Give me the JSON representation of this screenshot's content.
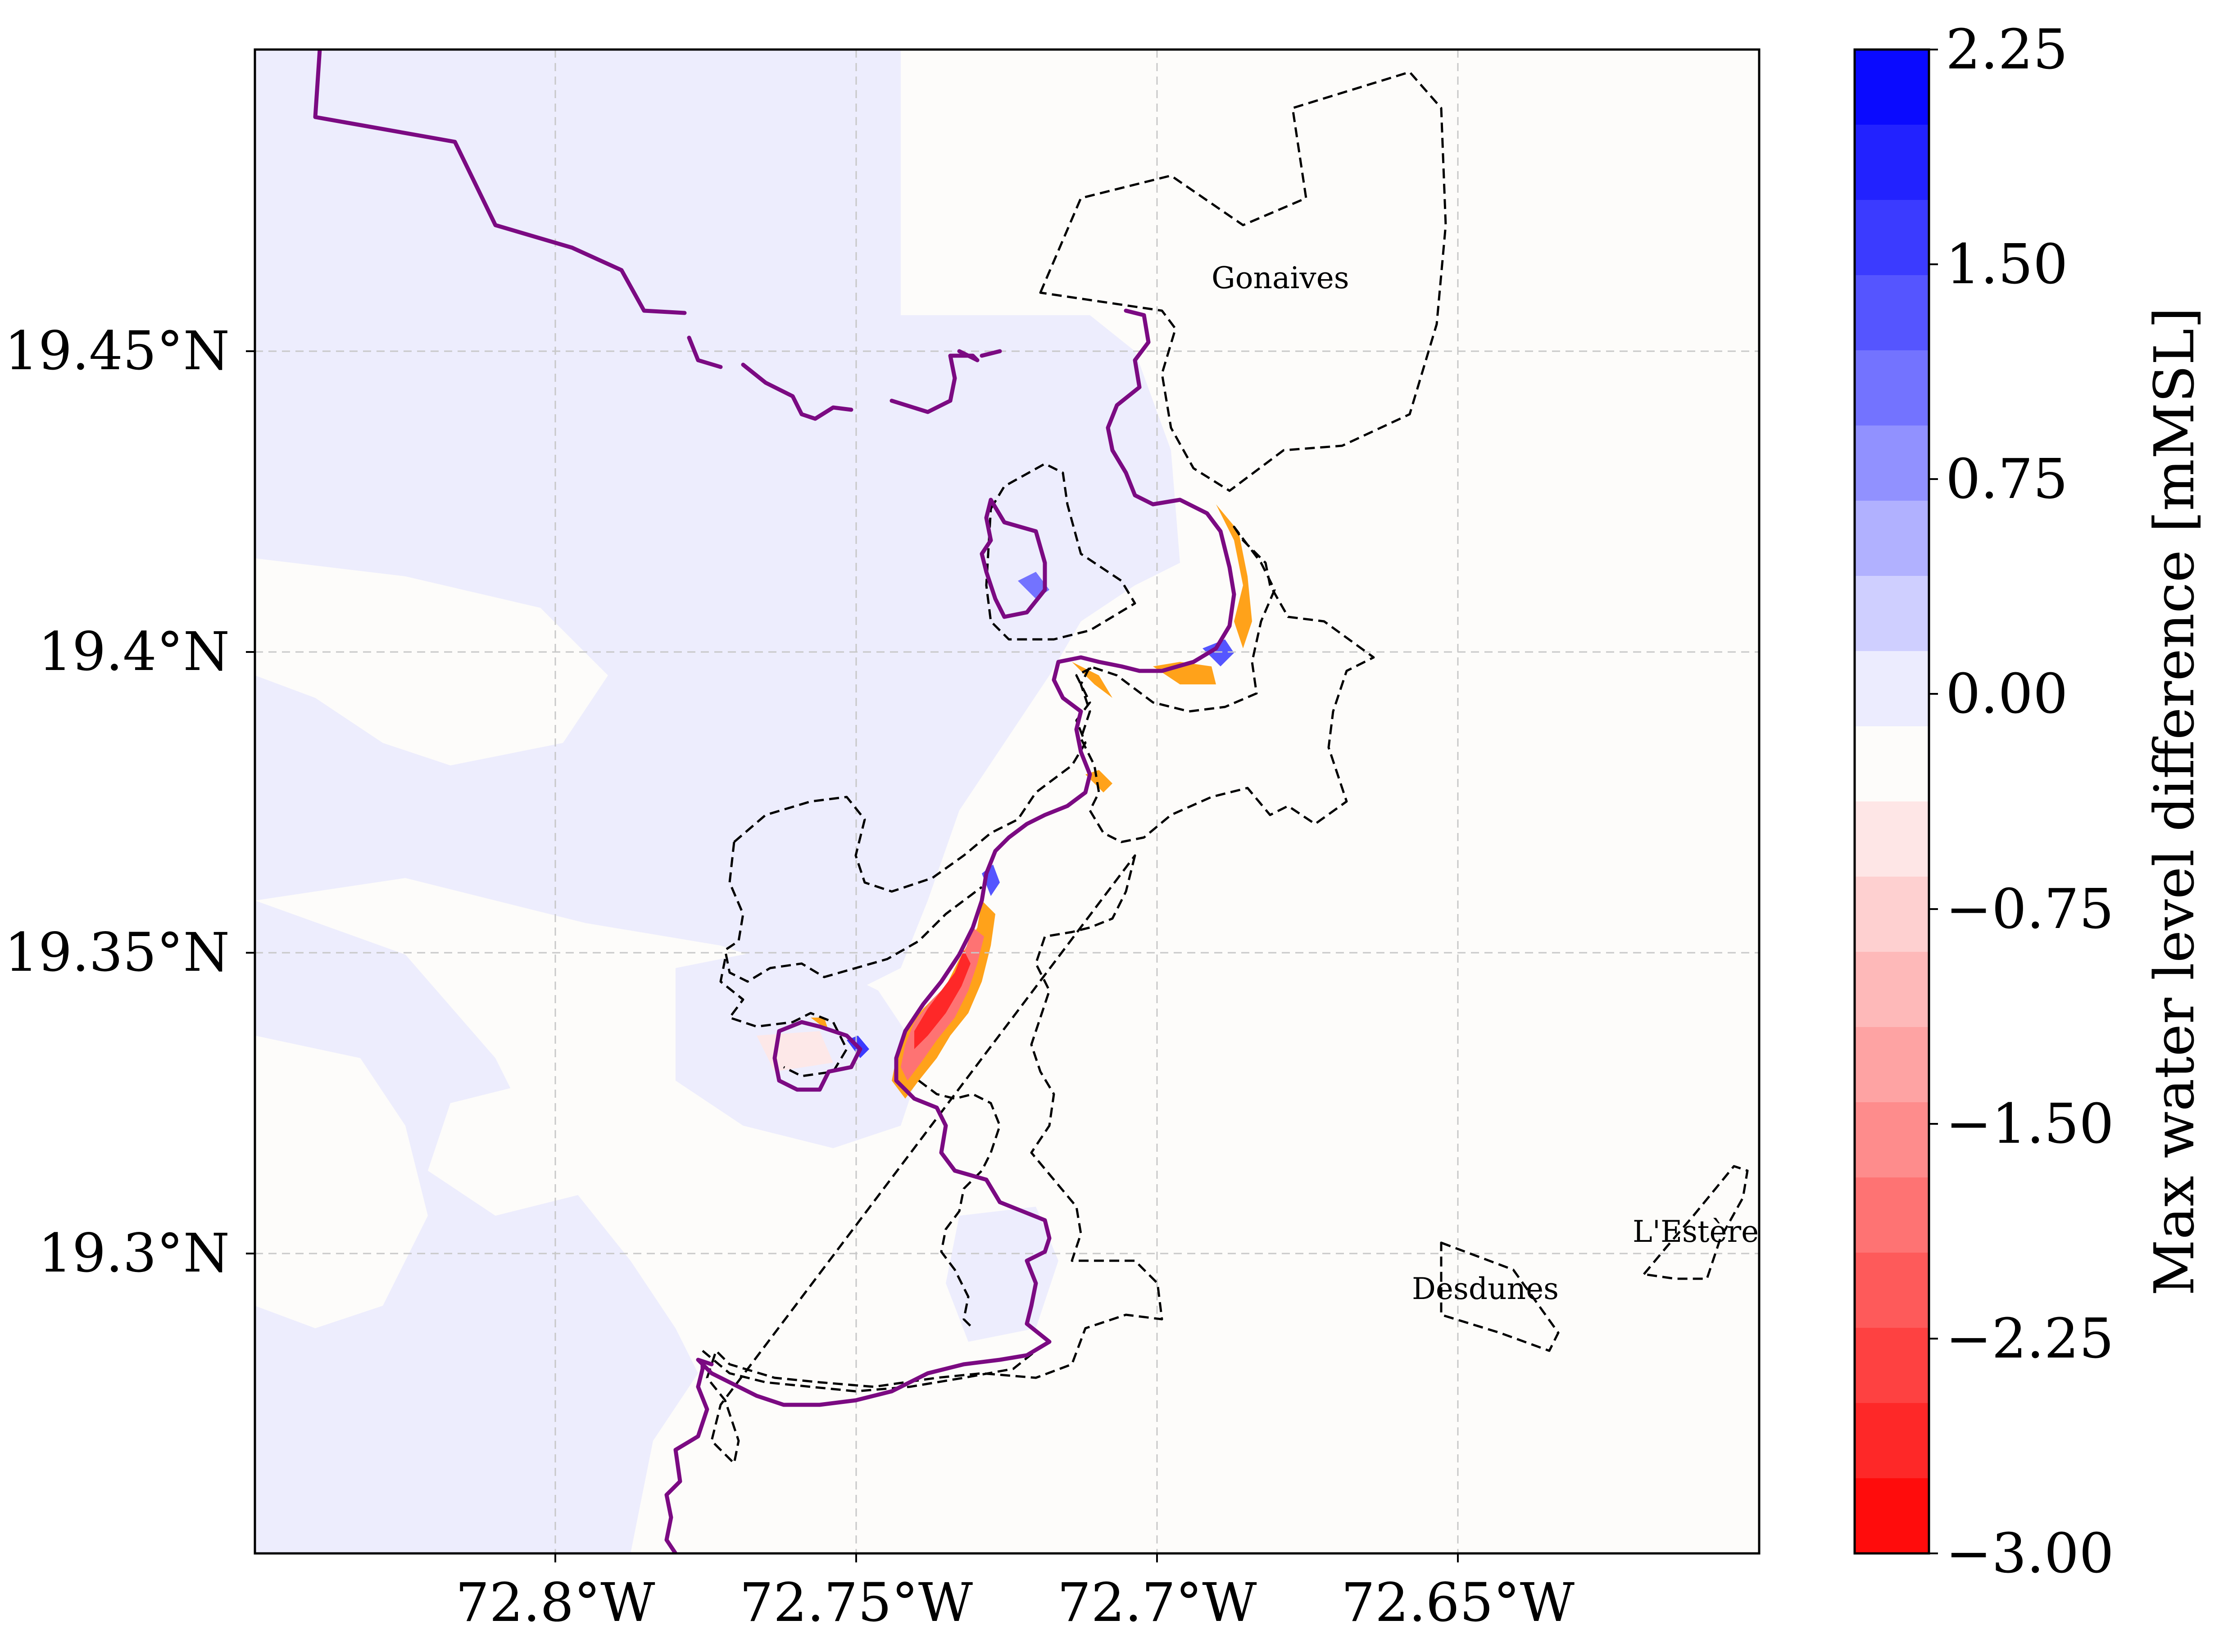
{
  "map": {
    "x_ticks": [
      "72.8°W",
      "72.75°W",
      "72.7°W",
      "72.65°W"
    ],
    "y_ticks": [
      "19.45°N",
      "19.4°N",
      "19.35°N",
      "19.3°N"
    ],
    "places": [
      "Gonaives",
      "Desdunes",
      "L'Estère"
    ]
  },
  "colorbar": {
    "label": "Max water level difference [mMSL]",
    "ticks": [
      "2.25",
      "1.50",
      "0.75",
      "0.00",
      "−0.75",
      "−1.50",
      "−2.25",
      "−3.00"
    ],
    "range": [
      -3.0,
      2.25
    ],
    "bands": [
      "#0a0aff",
      "#2222ff",
      "#3b3bff",
      "#5555ff",
      "#7373ff",
      "#9191ff",
      "#b1b1ff",
      "#cfcfff",
      "#ececfe",
      "#fdfcfa",
      "#fee6e6",
      "#fed0d0",
      "#feb9b9",
      "#fea3a3",
      "#fe8c8c",
      "#fe7373",
      "#fe5a5a",
      "#fe4141",
      "#fe2828",
      "#ff0c0c"
    ]
  },
  "colors": {
    "coastline": "#7b0a82",
    "fringe": "#ffa21a",
    "boundaries": "#000000",
    "grid": "#c8c8c8"
  }
}
